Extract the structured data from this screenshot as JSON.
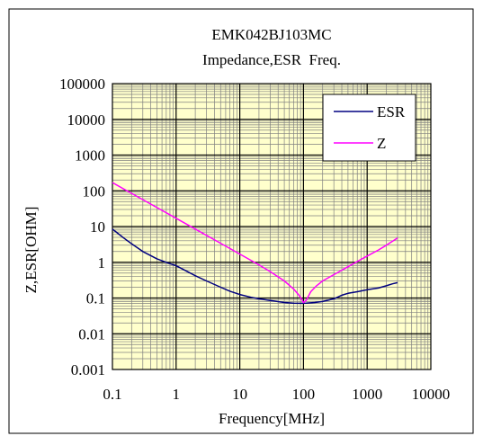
{
  "chart_data": {
    "type": "line",
    "title": "EMK042BJ103MC",
    "subtitle": "Impedance,ESR  Freq.",
    "xlabel": "Frequency[MHz]",
    "ylabel": "Z,ESR[OHM]",
    "x_scale": "log",
    "y_scale": "log",
    "xlim": [
      0.1,
      10000
    ],
    "ylim": [
      0.001,
      100000
    ],
    "grid": true,
    "x_ticks": [
      "0.1",
      "1",
      "10",
      "100",
      "1000",
      "10000"
    ],
    "y_ticks": [
      "0.001",
      "0.01",
      "0.1",
      "1",
      "10",
      "100",
      "1000",
      "10000",
      "100000"
    ],
    "legend_position": "top-right",
    "colors": {
      "plot_background": "#FFFFCC",
      "major_grid": "#000000",
      "minor_grid": "#808080"
    },
    "series": [
      {
        "name": "ESR",
        "color": "#000080",
        "points": [
          [
            0.1,
            8.5
          ],
          [
            0.15,
            4.8
          ],
          [
            0.2,
            3.3
          ],
          [
            0.3,
            2.0
          ],
          [
            0.5,
            1.25
          ],
          [
            0.7,
            1.0
          ],
          [
            1,
            0.8
          ],
          [
            1.5,
            0.55
          ],
          [
            2,
            0.42
          ],
          [
            3,
            0.3
          ],
          [
            5,
            0.2
          ],
          [
            7,
            0.155
          ],
          [
            10,
            0.125
          ],
          [
            15,
            0.105
          ],
          [
            20,
            0.095
          ],
          [
            30,
            0.085
          ],
          [
            50,
            0.075
          ],
          [
            70,
            0.072
          ],
          [
            90,
            0.071
          ],
          [
            110,
            0.072
          ],
          [
            150,
            0.075
          ],
          [
            200,
            0.08
          ],
          [
            300,
            0.095
          ],
          [
            400,
            0.12
          ],
          [
            500,
            0.135
          ],
          [
            700,
            0.15
          ],
          [
            1000,
            0.17
          ],
          [
            1500,
            0.19
          ],
          [
            2000,
            0.22
          ],
          [
            2500,
            0.25
          ],
          [
            3000,
            0.27
          ]
        ]
      },
      {
        "name": "Z",
        "color": "#FF00FF",
        "points": [
          [
            0.1,
            170
          ],
          [
            0.2,
            85
          ],
          [
            0.5,
            34
          ],
          [
            1,
            17
          ],
          [
            2,
            8.5
          ],
          [
            5,
            3.4
          ],
          [
            10,
            1.7
          ],
          [
            20,
            0.85
          ],
          [
            30,
            0.55
          ],
          [
            50,
            0.3
          ],
          [
            70,
            0.18
          ],
          [
            85,
            0.12
          ],
          [
            95,
            0.09
          ],
          [
            100,
            0.075
          ],
          [
            110,
            0.085
          ],
          [
            130,
            0.15
          ],
          [
            160,
            0.22
          ],
          [
            200,
            0.3
          ],
          [
            300,
            0.45
          ],
          [
            500,
            0.75
          ],
          [
            700,
            1.05
          ],
          [
            1000,
            1.5
          ],
          [
            1500,
            2.2
          ],
          [
            2000,
            3.0
          ],
          [
            3000,
            4.8
          ]
        ]
      }
    ]
  }
}
